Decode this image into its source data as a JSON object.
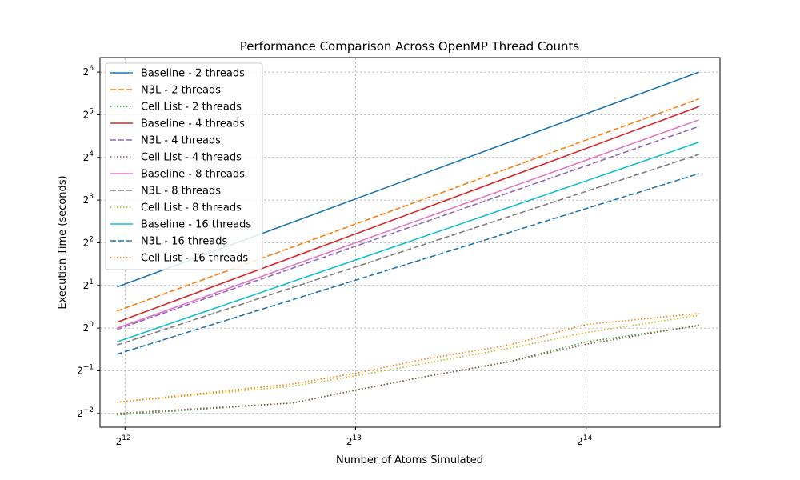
{
  "chart_data": {
    "type": "line",
    "title": "Performance Comparison Across OpenMP Thread Counts",
    "xlabel": "Number of Atoms Simulated",
    "ylabel": "Execution Time (seconds)",
    "x_scale": "log2",
    "y_scale": "log2",
    "xlim": [
      3800,
      24500
    ],
    "ylim": [
      0.2,
      81
    ],
    "x_ticks": [
      {
        "value": 4096,
        "base": "2",
        "exp": "12"
      },
      {
        "value": 8192,
        "base": "2",
        "exp": "13"
      },
      {
        "value": 16384,
        "base": "2",
        "exp": "14"
      }
    ],
    "y_ticks": [
      {
        "value": 0.25,
        "base": "2",
        "exp": "−2"
      },
      {
        "value": 0.5,
        "base": "2",
        "exp": "−1"
      },
      {
        "value": 1,
        "base": "2",
        "exp": "0"
      },
      {
        "value": 2,
        "base": "2",
        "exp": "1"
      },
      {
        "value": 4,
        "base": "2",
        "exp": "2"
      },
      {
        "value": 8,
        "base": "2",
        "exp": "3"
      },
      {
        "value": 16,
        "base": "2",
        "exp": "4"
      },
      {
        "value": 32,
        "base": "2",
        "exp": "5"
      },
      {
        "value": 64,
        "base": "2",
        "exp": "6"
      }
    ],
    "grid": true,
    "legend_position": "top-left",
    "series": [
      {
        "name": "Baseline - 2 threads",
        "color": "#1f77b4",
        "style": "solid",
        "x": [
          4000,
          23000
        ],
        "y": [
          1.95,
          64
        ]
      },
      {
        "name": "N3L - 2 threads",
        "color": "#ff7f0e",
        "style": "dashed",
        "x": [
          4000,
          23000
        ],
        "y": [
          1.32,
          41.5
        ]
      },
      {
        "name": "Cell List - 2 threads",
        "color": "#2ca02c",
        "style": "dotted",
        "x": [
          4000,
          6800,
          8192,
          10000,
          13000,
          16384,
          23000
        ],
        "y": [
          0.244,
          0.297,
          0.365,
          0.45,
          0.58,
          0.8,
          1.04
        ]
      },
      {
        "name": "Baseline - 4 threads",
        "color": "#d62728",
        "style": "solid",
        "x": [
          4000,
          23000
        ],
        "y": [
          1.1,
          36.5
        ]
      },
      {
        "name": "N3L - 4 threads",
        "color": "#9467bd",
        "style": "dashed",
        "x": [
          4000,
          23000
        ],
        "y": [
          0.98,
          26.5
        ]
      },
      {
        "name": "Cell List - 4 threads",
        "color": "#8c564b",
        "style": "dotted",
        "x": [
          4000,
          6800,
          8192,
          10000,
          13000,
          16384,
          23000
        ],
        "y": [
          0.25,
          0.297,
          0.365,
          0.45,
          0.58,
          0.77,
          1.05
        ]
      },
      {
        "name": "Baseline - 8 threads",
        "color": "#e377c2",
        "style": "solid",
        "x": [
          4000,
          23000
        ],
        "y": [
          1.0,
          29.5
        ]
      },
      {
        "name": "N3L - 8 threads",
        "color": "#7f7f7f",
        "style": "dashed",
        "x": [
          4000,
          23000
        ],
        "y": [
          0.76,
          16.8
        ]
      },
      {
        "name": "Cell List - 8 threads",
        "color": "#bcbd22",
        "style": "dotted",
        "x": [
          4000,
          6800,
          8192,
          10000,
          13000,
          16384,
          23000
        ],
        "y": [
          0.3,
          0.39,
          0.46,
          0.56,
          0.72,
          0.93,
          1.23
        ]
      },
      {
        "name": "Baseline - 16 threads",
        "color": "#17becf",
        "style": "solid",
        "x": [
          4000,
          23000
        ],
        "y": [
          0.8,
          20.5
        ]
      },
      {
        "name": "N3L - 16 threads",
        "color": "#1f77b4",
        "style": "dashed",
        "x": [
          4000,
          23000
        ],
        "y": [
          0.655,
          12.3
        ]
      },
      {
        "name": "Cell List - 16 threads",
        "color": "#ff7f0e",
        "style": "dotted",
        "x": [
          4000,
          6800,
          8192,
          10000,
          13000,
          16384,
          23000
        ],
        "y": [
          0.3,
          0.405,
          0.48,
          0.6,
          0.76,
          1.06,
          1.27
        ]
      }
    ]
  }
}
